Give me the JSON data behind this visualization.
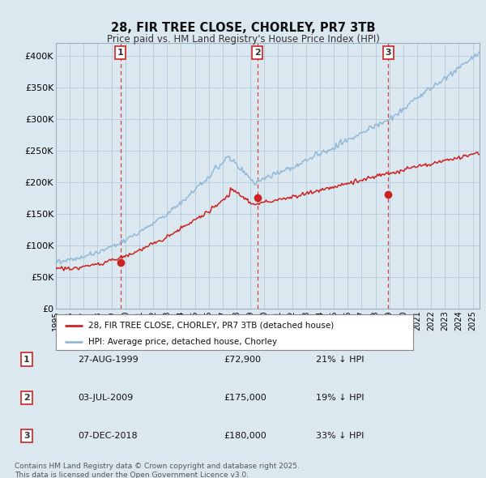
{
  "title": "28, FIR TREE CLOSE, CHORLEY, PR7 3TB",
  "subtitle": "Price paid vs. HM Land Registry's House Price Index (HPI)",
  "hpi_color": "#92b8d8",
  "price_color": "#cc2222",
  "dashed_color": "#cc2222",
  "background_color": "#dce8f0",
  "plot_bg_color": "#dce8f0",
  "grid_color": "#b8cede",
  "ylim": [
    0,
    420000
  ],
  "yticks": [
    0,
    50000,
    100000,
    150000,
    200000,
    250000,
    300000,
    350000,
    400000
  ],
  "ytick_labels": [
    "£0",
    "£50K",
    "£100K",
    "£150K",
    "£200K",
    "£250K",
    "£300K",
    "£350K",
    "£400K"
  ],
  "sale_dates_num": [
    1999.65,
    2009.5,
    2018.92
  ],
  "sale_prices": [
    72900,
    175000,
    180000
  ],
  "sale_labels": [
    "1",
    "2",
    "3"
  ],
  "sale_date_strs": [
    "27-AUG-1999",
    "03-JUL-2009",
    "07-DEC-2018"
  ],
  "sale_price_strs": [
    "£72,900",
    "£175,000",
    "£180,000"
  ],
  "sale_pct_strs": [
    "21% ↓ HPI",
    "19% ↓ HPI",
    "33% ↓ HPI"
  ],
  "legend_label_price": "28, FIR TREE CLOSE, CHORLEY, PR7 3TB (detached house)",
  "legend_label_hpi": "HPI: Average price, detached house, Chorley",
  "footer1": "Contains HM Land Registry data © Crown copyright and database right 2025.",
  "footer2": "This data is licensed under the Open Government Licence v3.0.",
  "xmin": 1995.0,
  "xmax": 2025.5
}
